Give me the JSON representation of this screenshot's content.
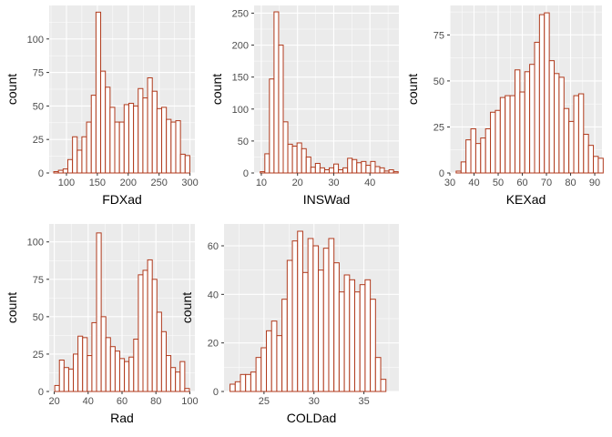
{
  "chart_data": [
    {
      "type": "bar",
      "xlabel": "FDXad",
      "ylabel": "count",
      "xlim": [
        72,
        308
      ],
      "ylim": [
        0,
        125
      ],
      "xticks": [
        100,
        150,
        200,
        250,
        300
      ],
      "yticks": [
        0,
        25,
        50,
        75,
        100
      ],
      "bin_width": 7.6,
      "bin_start": 79.4,
      "values": [
        1,
        2,
        3,
        10,
        27,
        17,
        27,
        38,
        58,
        120,
        76,
        64,
        49,
        38,
        38,
        51,
        52,
        50,
        63,
        56,
        71,
        61,
        48,
        49,
        40,
        38,
        39,
        14,
        13
      ]
    },
    {
      "type": "bar",
      "xlabel": "INSWad",
      "ylabel": "count",
      "xlim": [
        8,
        48
      ],
      "ylim": [
        0,
        262
      ],
      "xticks": [
        10,
        20,
        30,
        40
      ],
      "yticks": [
        0,
        50,
        100,
        150,
        200,
        250
      ],
      "bin_width": 1.27,
      "bin_start": 9.7,
      "values": [
        2,
        30,
        147,
        252,
        200,
        80,
        45,
        42,
        47,
        38,
        25,
        9,
        15,
        8,
        5,
        8,
        14,
        5,
        8,
        23,
        21,
        16,
        18,
        12,
        18,
        10,
        8,
        3,
        5,
        2
      ]
    },
    {
      "type": "bar",
      "xlabel": "KEXad",
      "ylabel": "count",
      "xlim": [
        30,
        93
      ],
      "ylim": [
        0,
        91
      ],
      "xticks": [
        30,
        40,
        50,
        60,
        70,
        80,
        90
      ],
      "yticks": [
        0,
        25,
        50,
        75
      ],
      "bin_width": 2.03,
      "bin_start": 32.6,
      "values": [
        1,
        6,
        18,
        24,
        16,
        19,
        24,
        33,
        34,
        41,
        42,
        42,
        56,
        44,
        55,
        59,
        71,
        86,
        87,
        61,
        54,
        52,
        35,
        28,
        42,
        43,
        21,
        15,
        9,
        8
      ]
    },
    {
      "type": "bar",
      "xlabel": "Rad",
      "ylabel": "count",
      "xlim": [
        17,
        103
      ],
      "ylim": [
        0,
        112
      ],
      "xticks": [
        20,
        40,
        60,
        80,
        100
      ],
      "yticks": [
        0,
        25,
        50,
        75,
        100
      ],
      "bin_width": 2.74,
      "bin_start": 20.3,
      "values": [
        4,
        21,
        16,
        15,
        25,
        37,
        36,
        24,
        46,
        106,
        50,
        36,
        30,
        27,
        22,
        20,
        23,
        35,
        78,
        81,
        88,
        75,
        53,
        40,
        24,
        16,
        13,
        20,
        2
      ]
    },
    {
      "type": "bar",
      "xlabel": "COLDad",
      "ylabel": "count",
      "xlim": [
        21,
        38.5
      ],
      "ylim": [
        0,
        69
      ],
      "xticks": [
        25,
        30,
        35
      ],
      "yticks": [
        0,
        20,
        40,
        60
      ],
      "bin_width": 0.52,
      "bin_start": 21.6,
      "values": [
        3,
        4,
        7,
        7,
        8,
        14,
        18,
        25,
        29,
        23,
        38,
        54,
        62,
        66,
        49,
        63,
        60,
        50,
        59,
        63,
        53,
        41,
        48,
        46,
        41,
        44,
        46,
        38,
        14,
        5
      ]
    }
  ]
}
